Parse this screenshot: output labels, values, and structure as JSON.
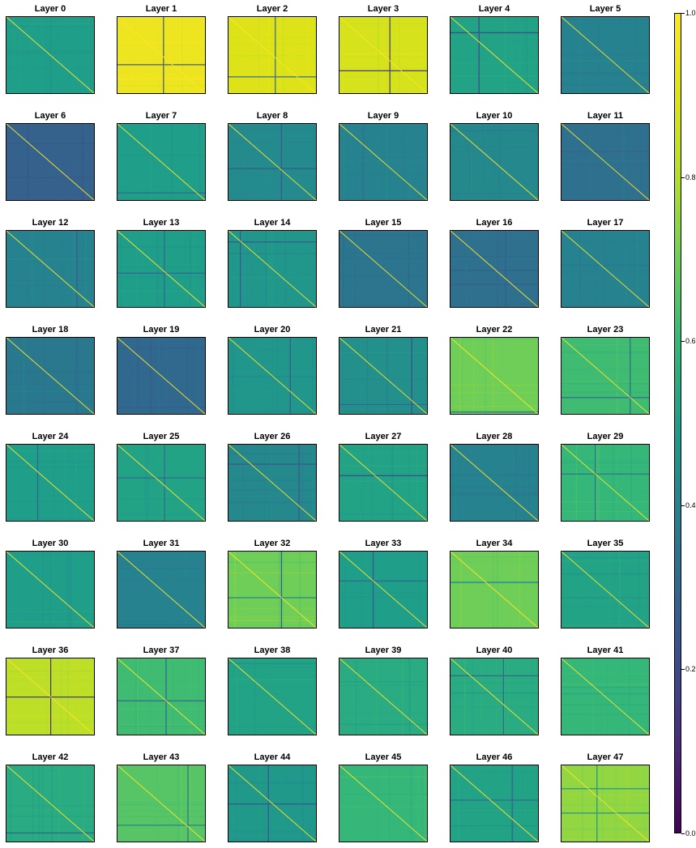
{
  "chart_data": {
    "type": "heatmap",
    "layout": {
      "rows": 8,
      "cols": 6
    },
    "colormap": "viridis",
    "colorbar": {
      "min": 0.0,
      "max": 1.0,
      "ticks": [
        "0.0",
        "0.2",
        "0.4",
        "0.6",
        "0.8",
        "1.0"
      ]
    },
    "diagonal_value": 1.0,
    "panels": [
      {
        "title": "Layer 0",
        "base": 0.5,
        "lines": []
      },
      {
        "title": "Layer 1",
        "base": 0.95,
        "lines": [
          {
            "dir": "v",
            "pos": 0.52,
            "value": 0.25
          },
          {
            "dir": "h",
            "pos": 0.62,
            "value": 0.25
          }
        ]
      },
      {
        "title": "Layer 2",
        "base": 0.9,
        "lines": [
          {
            "dir": "v",
            "pos": 0.53,
            "value": 0.3
          },
          {
            "dir": "h",
            "pos": 0.78,
            "value": 0.3
          }
        ]
      },
      {
        "title": "Layer 3",
        "base": 0.88,
        "lines": [
          {
            "dir": "v",
            "pos": 0.57,
            "value": 0.15
          },
          {
            "dir": "h",
            "pos": 0.7,
            "value": 0.15
          }
        ]
      },
      {
        "title": "Layer 4",
        "base": 0.52,
        "lines": [
          {
            "dir": "v",
            "pos": 0.32,
            "value": 0.2
          },
          {
            "dir": "h",
            "pos": 0.2,
            "value": 0.2
          }
        ]
      },
      {
        "title": "Layer 5",
        "base": 0.4,
        "lines": []
      },
      {
        "title": "Layer 6",
        "base": 0.28,
        "lines": []
      },
      {
        "title": "Layer 7",
        "base": 0.5,
        "lines": [
          {
            "dir": "h",
            "pos": 0.9,
            "value": 0.3
          }
        ]
      },
      {
        "title": "Layer 8",
        "base": 0.43,
        "lines": [
          {
            "dir": "v",
            "pos": 0.6,
            "value": 0.25
          },
          {
            "dir": "h",
            "pos": 0.58,
            "value": 0.25
          }
        ]
      },
      {
        "title": "Layer 9",
        "base": 0.4,
        "lines": []
      },
      {
        "title": "Layer 10",
        "base": 0.42,
        "lines": []
      },
      {
        "title": "Layer 11",
        "base": 0.33,
        "lines": []
      },
      {
        "title": "Layer 12",
        "base": 0.4,
        "lines": [
          {
            "dir": "v",
            "pos": 0.8,
            "value": 0.25
          }
        ]
      },
      {
        "title": "Layer 13",
        "base": 0.5,
        "lines": [
          {
            "dir": "v",
            "pos": 0.53,
            "value": 0.3
          },
          {
            "dir": "h",
            "pos": 0.55,
            "value": 0.3
          }
        ]
      },
      {
        "title": "Layer 14",
        "base": 0.47,
        "lines": [
          {
            "dir": "v",
            "pos": 0.13,
            "value": 0.25
          },
          {
            "dir": "h",
            "pos": 0.14,
            "value": 0.25
          }
        ]
      },
      {
        "title": "Layer 15",
        "base": 0.35,
        "lines": []
      },
      {
        "title": "Layer 16",
        "base": 0.33,
        "lines": []
      },
      {
        "title": "Layer 17",
        "base": 0.4,
        "lines": []
      },
      {
        "title": "Layer 18",
        "base": 0.36,
        "lines": []
      },
      {
        "title": "Layer 19",
        "base": 0.3,
        "lines": []
      },
      {
        "title": "Layer 20",
        "base": 0.47,
        "lines": [
          {
            "dir": "v",
            "pos": 0.7,
            "value": 0.25
          }
        ]
      },
      {
        "title": "Layer 21",
        "base": 0.45,
        "lines": [
          {
            "dir": "v",
            "pos": 0.82,
            "value": 0.2
          },
          {
            "dir": "h",
            "pos": 0.87,
            "value": 0.3
          }
        ]
      },
      {
        "title": "Layer 22",
        "base": 0.7,
        "lines": [
          {
            "dir": "h",
            "pos": 0.97,
            "value": 0.35
          }
        ]
      },
      {
        "title": "Layer 23",
        "base": 0.62,
        "lines": [
          {
            "dir": "v",
            "pos": 0.78,
            "value": 0.3
          },
          {
            "dir": "h",
            "pos": 0.78,
            "value": 0.3
          }
        ]
      },
      {
        "title": "Layer 24",
        "base": 0.5,
        "lines": [
          {
            "dir": "v",
            "pos": 0.35,
            "value": 0.3
          }
        ]
      },
      {
        "title": "Layer 25",
        "base": 0.52,
        "lines": [
          {
            "dir": "v",
            "pos": 0.53,
            "value": 0.3
          },
          {
            "dir": "h",
            "pos": 0.43,
            "value": 0.3
          }
        ]
      },
      {
        "title": "Layer 26",
        "base": 0.42,
        "lines": [
          {
            "dir": "h",
            "pos": 0.25,
            "value": 0.25
          },
          {
            "dir": "v",
            "pos": 0.8,
            "value": 0.25
          }
        ]
      },
      {
        "title": "Layer 27",
        "base": 0.52,
        "lines": [
          {
            "dir": "h",
            "pos": 0.4,
            "value": 0.2
          }
        ]
      },
      {
        "title": "Layer 28",
        "base": 0.4,
        "lines": []
      },
      {
        "title": "Layer 29",
        "base": 0.6,
        "lines": [
          {
            "dir": "h",
            "pos": 0.38,
            "value": 0.35
          },
          {
            "dir": "v",
            "pos": 0.38,
            "value": 0.35
          }
        ]
      },
      {
        "title": "Layer 30",
        "base": 0.5,
        "lines": []
      },
      {
        "title": "Layer 31",
        "base": 0.4,
        "lines": []
      },
      {
        "title": "Layer 32",
        "base": 0.7,
        "lines": [
          {
            "dir": "v",
            "pos": 0.6,
            "value": 0.25
          },
          {
            "dir": "h",
            "pos": 0.6,
            "value": 0.4
          }
        ]
      },
      {
        "title": "Layer 33",
        "base": 0.5,
        "lines": [
          {
            "dir": "v",
            "pos": 0.38,
            "value": 0.25
          },
          {
            "dir": "h",
            "pos": 0.38,
            "value": 0.3
          }
        ]
      },
      {
        "title": "Layer 34",
        "base": 0.7,
        "lines": [
          {
            "dir": "h",
            "pos": 0.4,
            "value": 0.4
          }
        ]
      },
      {
        "title": "Layer 35",
        "base": 0.52,
        "lines": []
      },
      {
        "title": "Layer 36",
        "base": 0.82,
        "lines": [
          {
            "dir": "v",
            "pos": 0.5,
            "value": 0.15
          },
          {
            "dir": "h",
            "pos": 0.5,
            "value": 0.15
          }
        ]
      },
      {
        "title": "Layer 37",
        "base": 0.62,
        "lines": [
          {
            "dir": "v",
            "pos": 0.55,
            "value": 0.3
          },
          {
            "dir": "h",
            "pos": 0.55,
            "value": 0.3
          }
        ]
      },
      {
        "title": "Layer 38",
        "base": 0.52,
        "lines": []
      },
      {
        "title": "Layer 39",
        "base": 0.55,
        "lines": []
      },
      {
        "title": "Layer 40",
        "base": 0.55,
        "lines": [
          {
            "dir": "h",
            "pos": 0.22,
            "value": 0.3
          },
          {
            "dir": "v",
            "pos": 0.6,
            "value": 0.3
          }
        ]
      },
      {
        "title": "Layer 41",
        "base": 0.6,
        "lines": []
      },
      {
        "title": "Layer 42",
        "base": 0.55,
        "lines": [
          {
            "dir": "h",
            "pos": 0.88,
            "value": 0.3
          }
        ]
      },
      {
        "title": "Layer 43",
        "base": 0.66,
        "lines": [
          {
            "dir": "v",
            "pos": 0.8,
            "value": 0.35
          },
          {
            "dir": "h",
            "pos": 0.78,
            "value": 0.4
          }
        ]
      },
      {
        "title": "Layer 44",
        "base": 0.48,
        "lines": [
          {
            "dir": "v",
            "pos": 0.45,
            "value": 0.25
          },
          {
            "dir": "h",
            "pos": 0.5,
            "value": 0.25
          }
        ]
      },
      {
        "title": "Layer 45",
        "base": 0.6,
        "lines": []
      },
      {
        "title": "Layer 46",
        "base": 0.52,
        "lines": [
          {
            "dir": "h",
            "pos": 0.45,
            "value": 0.3
          },
          {
            "dir": "v",
            "pos": 0.7,
            "value": 0.3
          }
        ]
      },
      {
        "title": "Layer 47",
        "base": 0.75,
        "lines": [
          {
            "dir": "h",
            "pos": 0.3,
            "value": 0.45
          },
          {
            "dir": "h",
            "pos": 0.62,
            "value": 0.45
          },
          {
            "dir": "v",
            "pos": 0.4,
            "value": 0.45
          }
        ]
      }
    ]
  }
}
